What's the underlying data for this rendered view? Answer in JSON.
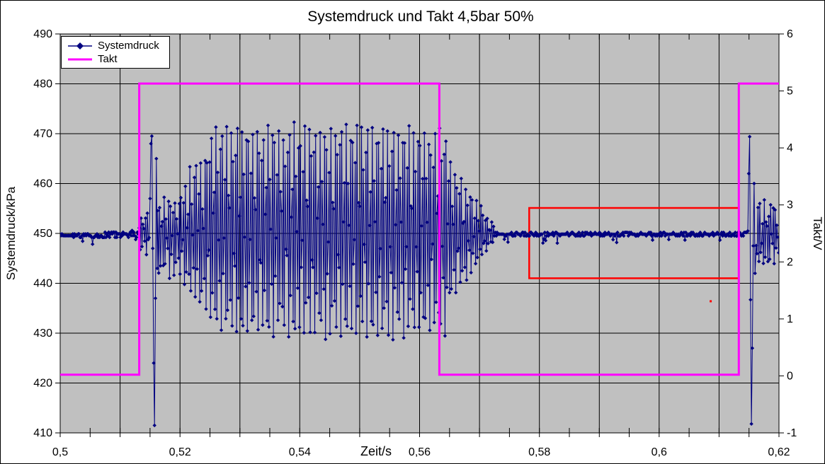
{
  "window": {
    "background": "#ffffff",
    "frame_color": "#000000"
  },
  "chart_data": {
    "type": "line",
    "title": "Systemdruck und Takt 4,5bar 50%",
    "xlabel": "Zeit/s",
    "ylabel_left": "Systemdruck/kPa",
    "ylabel_right": "Takt/V",
    "plot_background": "#c0c0c0",
    "gridline_color": "#000000",
    "axis_color": "#000000",
    "grid": "on",
    "x_axis": {
      "min": 0.5,
      "max": 0.62,
      "major_gridline_step": 0.01,
      "minor_tick_step": 0.005,
      "tick_labels": [
        {
          "t": 0.5,
          "label": "0,5"
        },
        {
          "t": 0.52,
          "label": "0,52"
        },
        {
          "t": 0.54,
          "label": "0,54"
        },
        {
          "t": 0.56,
          "label": "0,56"
        },
        {
          "t": 0.58,
          "label": "0,58"
        },
        {
          "t": 0.6,
          "label": "0,6"
        },
        {
          "t": 0.62,
          "label": "0,62"
        }
      ]
    },
    "y_axis_left": {
      "min": 410,
      "max": 490,
      "step": 10,
      "tick_labels": [
        "410",
        "420",
        "430",
        "440",
        "450",
        "460",
        "470",
        "480",
        "490"
      ]
    },
    "y_axis_right": {
      "min": -1,
      "max": 6,
      "step": 1,
      "tick_labels": [
        "-1",
        "0",
        "1",
        "2",
        "3",
        "4",
        "5",
        "6"
      ]
    },
    "legend": {
      "position": "top-left",
      "entries": [
        {
          "label": "Systemdruck",
          "color": "#000080",
          "marker": "diamond-line"
        },
        {
          "label": "Takt",
          "color": "#ff00ff",
          "marker": "line"
        }
      ]
    },
    "series": [
      {
        "name": "Systemdruck",
        "color": "#000080",
        "axis": "left",
        "marker": "diamond",
        "sample_interval_s": 0.00015,
        "quantize_kpa": 0.35,
        "segments": [
          {
            "type": "flat",
            "t0": 0.5,
            "t1": 0.5075,
            "base": 449.55,
            "noise": 0.3,
            "dip_prob": 0.05,
            "dip_depth": 1.8
          },
          {
            "type": "flat",
            "t0": 0.5075,
            "t1": 0.5132,
            "base": 449.9,
            "noise": 0.8,
            "dip_prob": 0.06,
            "dip_depth": 1.2
          },
          {
            "type": "osc",
            "t0": 0.5132,
            "t1": 0.515,
            "center": 450,
            "amp_start": 3,
            "amp_end": 5,
            "noise": 1
          },
          {
            "type": "spike",
            "t0": 0.515,
            "t1": 0.5163,
            "values": [
              457,
              468,
              469.5,
              447,
              424,
              411.5,
              437,
              465,
              443,
              430.5
            ]
          },
          {
            "type": "osc",
            "t0": 0.5163,
            "t1": 0.52,
            "center": 449.5,
            "amp_start": 7,
            "amp_end": 8,
            "noise": 1.2
          },
          {
            "type": "osc",
            "t0": 0.52,
            "t1": 0.526,
            "center": 450,
            "amp_start": 9,
            "amp_end": 20,
            "noise": 1.5
          },
          {
            "type": "osc",
            "t0": 0.526,
            "t1": 0.565,
            "center": 450.5,
            "amp_start": 20.5,
            "amp_end": 20.5,
            "noise": 1.5
          },
          {
            "type": "osc",
            "t0": 0.565,
            "t1": 0.5725,
            "center": 450,
            "amp_start": 14,
            "amp_end": 1.5,
            "noise": 0.8
          },
          {
            "type": "flat",
            "t0": 0.5725,
            "t1": 0.6148,
            "base": 449.85,
            "noise": 0.35,
            "dip_prob": 0.05,
            "dip_depth": 1.2
          },
          {
            "type": "spike",
            "t0": 0.6148,
            "t1": 0.6162,
            "values": [
              450.5,
              462,
              469.4,
              436.7,
              411.8,
              427,
              447.5,
              460,
              442
            ]
          },
          {
            "type": "osc",
            "t0": 0.6162,
            "t1": 0.6201,
            "center": 450,
            "amp_start": 8,
            "amp_end": 4,
            "noise": 2.5
          }
        ],
        "envelope_note": "flat ~449.5-450 kPa; transients to 411 / 469.5 kPa at takt edges; sustained oscillation 429-472 kPa while takt high"
      },
      {
        "name": "Takt",
        "color": "#ff00ff",
        "axis": "right",
        "marker": "none",
        "points": [
          [
            0.5,
            0.02
          ],
          [
            0.5132,
            0.02
          ],
          [
            0.5132,
            5.13
          ],
          [
            0.5633,
            5.13
          ],
          [
            0.5633,
            0.02
          ],
          [
            0.6133,
            0.02
          ],
          [
            0.6133,
            5.13
          ],
          [
            0.62,
            5.13
          ]
        ]
      }
    ],
    "annotations": [
      {
        "type": "rect",
        "color": "#ff0000",
        "axis": "left",
        "x0": 0.5783,
        "x1": 0.6133,
        "y0": 441.0,
        "y1": 455.1
      },
      {
        "type": "dot",
        "color": "#ff0000",
        "axis": "left",
        "x": 0.6086,
        "y": 436.4
      }
    ]
  }
}
